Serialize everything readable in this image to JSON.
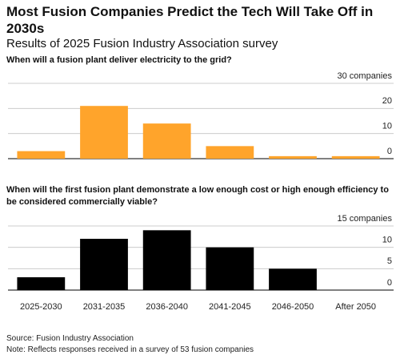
{
  "title": "Most Fusion Companies Predict the Tech Will Take Off in 2030s",
  "subtitle": "Results of 2025 Fusion Industry Association survey",
  "source": "Source: Fusion Industry Association",
  "note": "Note: Reflects responses received in a survey of 53 fusion companies",
  "chart_data": [
    {
      "type": "bar",
      "title": "When will a fusion plant deliver electricity to the grid?",
      "values": [
        3,
        21,
        14,
        5,
        1,
        1
      ],
      "color": "#ffa42b",
      "ylim": [
        0,
        30
      ],
      "yticks": [
        0,
        10,
        20,
        {
          "value": 30,
          "label": "30 companies"
        }
      ],
      "grid": true
    },
    {
      "type": "bar",
      "title": "When will the first fusion plant demonstrate a low enough cost or high enough efficiency to be considered commercially viable?",
      "categories": [
        "2025-2030",
        "2031-2035",
        "2036-2040",
        "2041-2045",
        "2046-2050",
        "After 2050"
      ],
      "values": [
        3,
        12,
        14,
        10,
        5,
        0
      ],
      "color": "#000000",
      "ylim": [
        0,
        15
      ],
      "yticks": [
        0,
        5,
        10,
        {
          "value": 15,
          "label": "15 companies"
        }
      ],
      "grid": true
    }
  ]
}
